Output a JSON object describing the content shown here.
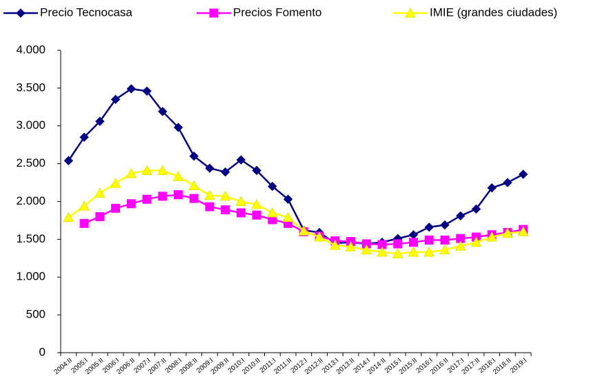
{
  "chart_data": {
    "type": "line",
    "categories": [
      "2004:II",
      "2005:I",
      "2005:II",
      "2006:I",
      "2006:II",
      "2007:I",
      "2007:II",
      "2008:I",
      "2008:II",
      "2009:I",
      "2009:II",
      "2010:I",
      "2010:II",
      "2011:I",
      "2011:II",
      "2012:I",
      "2012:II",
      "2013:I",
      "2013:II",
      "2014:I",
      "2014:II",
      "2015:I",
      "2015:II",
      "2016:I",
      "2016:II",
      "2017:I",
      "2017:II",
      "2018:I",
      "2018:II",
      "2019:I"
    ],
    "series": [
      {
        "name": "Precio Tecnocasa",
        "color": "#000080",
        "marker": "diamond",
        "values": [
          2540,
          2850,
          3060,
          3350,
          3490,
          3460,
          3190,
          2980,
          2600,
          2440,
          2390,
          2550,
          2410,
          2200,
          2030,
          1620,
          1590,
          1450,
          1460,
          1440,
          1460,
          1510,
          1560,
          1660,
          1690,
          1810,
          1900,
          2180,
          2250,
          2360
        ]
      },
      {
        "name": "Precios Fomento",
        "color": "#ff00ff",
        "marker": "square",
        "values": [
          null,
          1710,
          1800,
          1910,
          1970,
          2030,
          2070,
          2090,
          2040,
          1930,
          1890,
          1850,
          1820,
          1760,
          1710,
          1600,
          1540,
          1480,
          1470,
          1440,
          1430,
          1440,
          1460,
          1490,
          1490,
          1510,
          1530,
          1560,
          1590,
          1630
        ]
      },
      {
        "name": "IMIE (grandes ciudades)",
        "color": "#ffff00",
        "marker": "triangle",
        "values": [
          1790,
          1940,
          2110,
          2240,
          2370,
          2410,
          2410,
          2330,
          2210,
          2080,
          2070,
          2000,
          1960,
          1850,
          1790,
          1610,
          1530,
          1420,
          1400,
          1360,
          1330,
          1310,
          1330,
          1330,
          1360,
          1410,
          1460,
          1530,
          1580,
          1600
        ]
      }
    ],
    "ylim": [
      0,
      4000
    ],
    "yticks": [
      0,
      500,
      {
        "value": 1000,
        "label": "1.000"
      },
      {
        "value": 1500,
        "label": "1.500"
      },
      {
        "value": 2000,
        "label": "2.000"
      },
      {
        "value": 2500,
        "label": "2.500"
      },
      {
        "value": 3000,
        "label": "3.000"
      },
      {
        "value": 3500,
        "label": "3.500"
      },
      {
        "value": 4000,
        "label": "4.000"
      }
    ],
    "grid": false
  }
}
